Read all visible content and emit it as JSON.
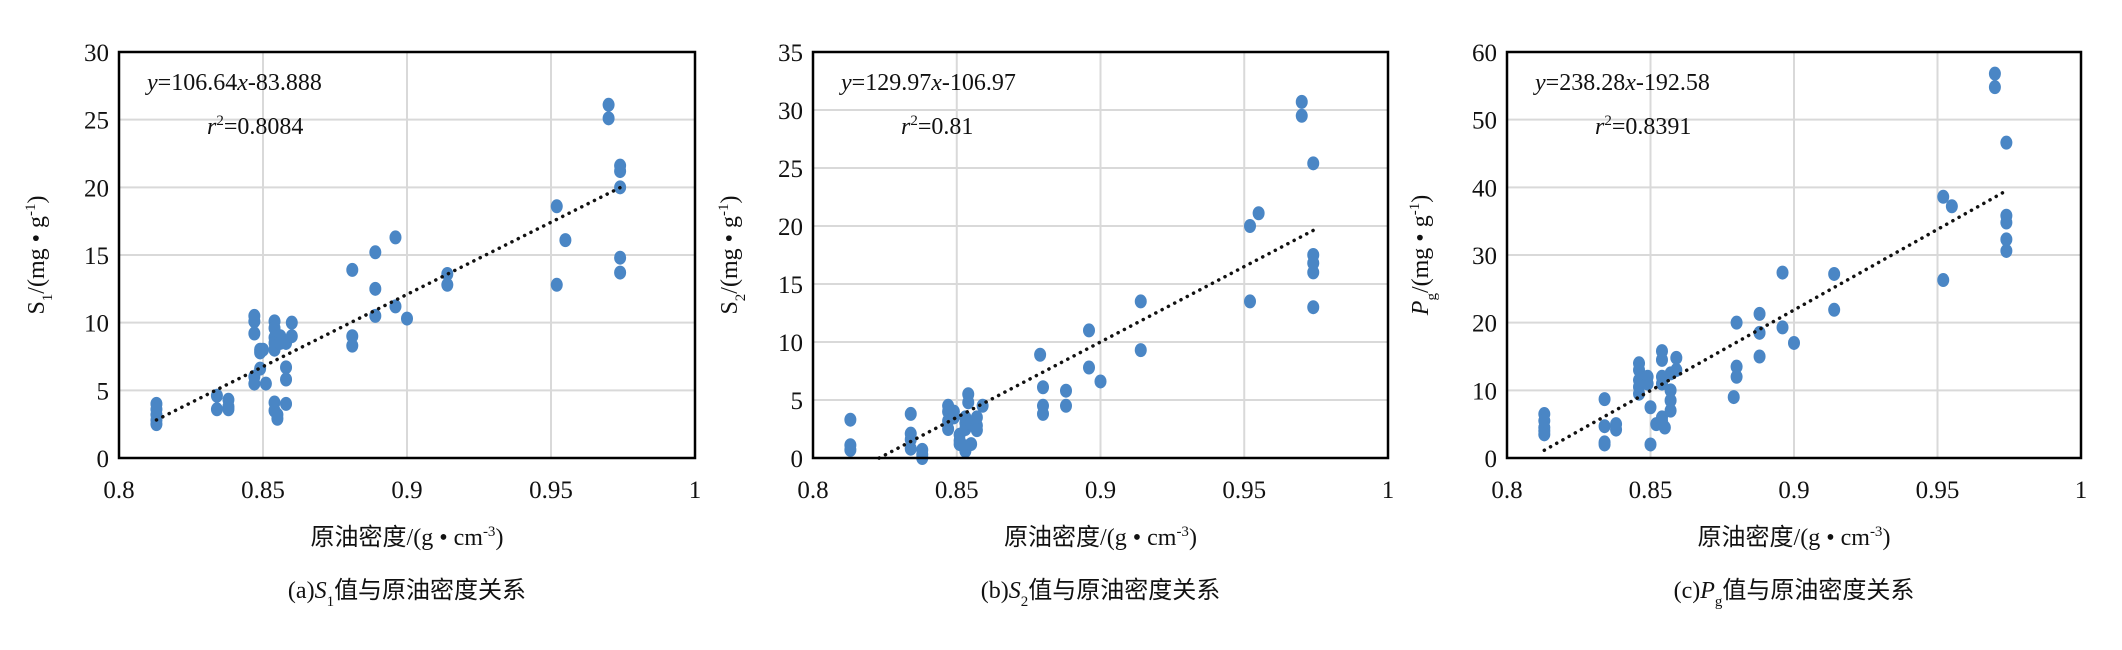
{
  "colors": {
    "point": "#4a86c5",
    "grid": "#d9d9d9",
    "trend": "#111111",
    "frame": "#000000"
  },
  "chart_data": [
    {
      "type": "scatter",
      "caption": {
        "prefix": "(a)",
        "var": "S",
        "sub": "1",
        "rest": "值与原油密度关系"
      },
      "xlabel": {
        "main": "原油密度/(g • cm",
        "sup": "-3",
        "close": ")"
      },
      "ylabel": {
        "var": "S",
        "sub": "1",
        "unit": "/(mg • g",
        "sup": "-1",
        "close": ")"
      },
      "xlim": [
        0.8,
        1
      ],
      "ylim": [
        0,
        30
      ],
      "xticks": [
        "0.8",
        "0.85",
        "0.9",
        "0.95",
        "1"
      ],
      "yticks": [
        "0",
        "5",
        "10",
        "15",
        "20",
        "25",
        "30"
      ],
      "grid": true,
      "equation": {
        "lhs": "y",
        "text": "=106.64",
        "x": "x",
        "tail": "-83.888"
      },
      "r2": {
        "r": "r",
        "sup": "2",
        "value": "=0.8084"
      },
      "trend": {
        "slope": 106.64,
        "intercept": -83.888,
        "x_range": [
          0.813,
          0.974
        ]
      },
      "points": [
        [
          0.813,
          4.0
        ],
        [
          0.813,
          3.6
        ],
        [
          0.813,
          3.2
        ],
        [
          0.813,
          2.8
        ],
        [
          0.813,
          2.5
        ],
        [
          0.834,
          4.6
        ],
        [
          0.834,
          3.6
        ],
        [
          0.838,
          4.3
        ],
        [
          0.838,
          3.8
        ],
        [
          0.838,
          3.6
        ],
        [
          0.847,
          10.5
        ],
        [
          0.847,
          10.1
        ],
        [
          0.847,
          9.2
        ],
        [
          0.847,
          6.0
        ],
        [
          0.847,
          5.5
        ],
        [
          0.849,
          8.0
        ],
        [
          0.849,
          7.8
        ],
        [
          0.849,
          6.6
        ],
        [
          0.851,
          5.5
        ],
        [
          0.85,
          8.0
        ],
        [
          0.854,
          10.1
        ],
        [
          0.854,
          9.6
        ],
        [
          0.854,
          8.9
        ],
        [
          0.854,
          8.5
        ],
        [
          0.854,
          8.0
        ],
        [
          0.854,
          4.1
        ],
        [
          0.854,
          3.5
        ],
        [
          0.855,
          2.9
        ],
        [
          0.856,
          9.0
        ],
        [
          0.856,
          8.5
        ],
        [
          0.855,
          3.2
        ],
        [
          0.858,
          8.5
        ],
        [
          0.858,
          6.7
        ],
        [
          0.858,
          5.8
        ],
        [
          0.858,
          4.0
        ],
        [
          0.86,
          10.0
        ],
        [
          0.86,
          9.0
        ],
        [
          0.881,
          13.9
        ],
        [
          0.881,
          9.0
        ],
        [
          0.881,
          8.3
        ],
        [
          0.889,
          15.2
        ],
        [
          0.889,
          12.5
        ],
        [
          0.889,
          10.5
        ],
        [
          0.896,
          16.3
        ],
        [
          0.896,
          11.2
        ],
        [
          0.9,
          10.3
        ],
        [
          0.914,
          13.6
        ],
        [
          0.914,
          12.8
        ],
        [
          0.952,
          18.6
        ],
        [
          0.952,
          12.8
        ],
        [
          0.955,
          16.1
        ],
        [
          0.97,
          26.1
        ],
        [
          0.97,
          25.1
        ],
        [
          0.974,
          21.6
        ],
        [
          0.974,
          21.2
        ],
        [
          0.974,
          20.0
        ],
        [
          0.974,
          14.8
        ],
        [
          0.974,
          13.7
        ]
      ]
    },
    {
      "type": "scatter",
      "caption": {
        "prefix": "(b)",
        "var": "S",
        "sub": "2",
        "rest": "值与原油密度关系"
      },
      "xlabel": {
        "main": "原油密度/(g • cm",
        "sup": "-3",
        "close": ")"
      },
      "ylabel": {
        "var": "S",
        "sub": "2",
        "unit": "/(mg • g",
        "sup": "-1",
        "close": ")"
      },
      "xlim": [
        0.8,
        1
      ],
      "ylim": [
        0,
        35
      ],
      "xticks": [
        "0.8",
        "0.85",
        "0.9",
        "0.95",
        "1"
      ],
      "yticks": [
        "0",
        "5",
        "10",
        "15",
        "20",
        "25",
        "30",
        "35"
      ],
      "grid": true,
      "equation": {
        "lhs": "y",
        "text": "=129.97",
        "x": "x",
        "tail": "-106.97"
      },
      "r2": {
        "r": "r",
        "sup": "2",
        "value": "=0.81"
      },
      "trend": {
        "slope": 129.97,
        "intercept": -106.97,
        "x_range": [
          0.823,
          0.974
        ]
      },
      "points": [
        [
          0.813,
          3.3
        ],
        [
          0.813,
          1.1
        ],
        [
          0.813,
          0.7
        ],
        [
          0.834,
          3.8
        ],
        [
          0.834,
          2.1
        ],
        [
          0.834,
          1.6
        ],
        [
          0.834,
          0.8
        ],
        [
          0.838,
          0.7
        ],
        [
          0.838,
          0.3
        ],
        [
          0.838,
          0.0
        ],
        [
          0.847,
          4.5
        ],
        [
          0.847,
          4.0
        ],
        [
          0.847,
          3.2
        ],
        [
          0.847,
          2.5
        ],
        [
          0.849,
          4.0
        ],
        [
          0.849,
          3.5
        ],
        [
          0.851,
          2.0
        ],
        [
          0.851,
          1.5
        ],
        [
          0.851,
          1.2
        ],
        [
          0.853,
          0.6
        ],
        [
          0.853,
          1.0
        ],
        [
          0.853,
          2.5
        ],
        [
          0.853,
          3.0
        ],
        [
          0.853,
          3.5
        ],
        [
          0.854,
          5.5
        ],
        [
          0.854,
          4.8
        ],
        [
          0.855,
          3.0
        ],
        [
          0.855,
          1.2
        ],
        [
          0.857,
          3.5
        ],
        [
          0.857,
          2.8
        ],
        [
          0.857,
          2.4
        ],
        [
          0.859,
          4.5
        ],
        [
          0.879,
          8.9
        ],
        [
          0.88,
          6.1
        ],
        [
          0.88,
          4.5
        ],
        [
          0.88,
          3.8
        ],
        [
          0.888,
          5.8
        ],
        [
          0.888,
          4.5
        ],
        [
          0.896,
          11.0
        ],
        [
          0.896,
          7.8
        ],
        [
          0.9,
          6.6
        ],
        [
          0.914,
          13.5
        ],
        [
          0.914,
          9.3
        ],
        [
          0.952,
          20.0
        ],
        [
          0.952,
          13.5
        ],
        [
          0.955,
          21.1
        ],
        [
          0.97,
          30.7
        ],
        [
          0.97,
          29.5
        ],
        [
          0.974,
          25.4
        ],
        [
          0.974,
          17.5
        ],
        [
          0.974,
          16.8
        ],
        [
          0.974,
          16.0
        ],
        [
          0.974,
          13.0
        ]
      ]
    },
    {
      "type": "scatter",
      "caption": {
        "prefix": "(c)",
        "var": "P",
        "sub": "g",
        "rest": "值与原油密度关系"
      },
      "xlabel": {
        "main": "原油密度/(g • cm",
        "sup": "-3",
        "close": ")"
      },
      "ylabel": {
        "var": "P",
        "sub": "g",
        "unit": "/(mg • g",
        "sup": "-1",
        "close": ")"
      },
      "xlim": [
        0.8,
        1
      ],
      "ylim": [
        0,
        60
      ],
      "xticks": [
        "0.8",
        "0.85",
        "0.9",
        "0.95",
        "1"
      ],
      "yticks": [
        "0",
        "10",
        "20",
        "30",
        "40",
        "50",
        "60"
      ],
      "grid": true,
      "equation": {
        "lhs": "y",
        "text": "=238.28",
        "x": "x",
        "tail": "-192.58"
      },
      "r2": {
        "r": "r",
        "sup": "2",
        "value": "=0.8391"
      },
      "trend": {
        "slope": 238.28,
        "intercept": -192.58,
        "x_range": [
          0.813,
          0.974
        ]
      },
      "points": [
        [
          0.813,
          6.5
        ],
        [
          0.813,
          5.5
        ],
        [
          0.813,
          4.5
        ],
        [
          0.813,
          4.0
        ],
        [
          0.813,
          3.5
        ],
        [
          0.834,
          8.7
        ],
        [
          0.834,
          4.7
        ],
        [
          0.834,
          2.3
        ],
        [
          0.834,
          2.0
        ],
        [
          0.838,
          5.0
        ],
        [
          0.838,
          4.2
        ],
        [
          0.846,
          14.0
        ],
        [
          0.846,
          13.0
        ],
        [
          0.846,
          11.5
        ],
        [
          0.846,
          10.5
        ],
        [
          0.846,
          9.5
        ],
        [
          0.849,
          12.0
        ],
        [
          0.849,
          11.0
        ],
        [
          0.85,
          7.5
        ],
        [
          0.85,
          2.0
        ],
        [
          0.852,
          5.0
        ],
        [
          0.854,
          15.8
        ],
        [
          0.854,
          14.5
        ],
        [
          0.854,
          12.0
        ],
        [
          0.854,
          11.0
        ],
        [
          0.854,
          6.0
        ],
        [
          0.854,
          5.5
        ],
        [
          0.855,
          4.5
        ],
        [
          0.857,
          12.5
        ],
        [
          0.857,
          10.0
        ],
        [
          0.857,
          8.5
        ],
        [
          0.857,
          7.0
        ],
        [
          0.859,
          14.8
        ],
        [
          0.859,
          13.0
        ],
        [
          0.879,
          9.0
        ],
        [
          0.88,
          20.0
        ],
        [
          0.88,
          13.5
        ],
        [
          0.88,
          12.0
        ],
        [
          0.888,
          21.3
        ],
        [
          0.888,
          18.5
        ],
        [
          0.888,
          15.0
        ],
        [
          0.896,
          27.4
        ],
        [
          0.896,
          19.3
        ],
        [
          0.9,
          17.0
        ],
        [
          0.914,
          27.2
        ],
        [
          0.914,
          21.9
        ],
        [
          0.952,
          38.6
        ],
        [
          0.952,
          26.3
        ],
        [
          0.955,
          37.2
        ],
        [
          0.97,
          56.8
        ],
        [
          0.97,
          54.8
        ],
        [
          0.974,
          46.6
        ],
        [
          0.974,
          35.8
        ],
        [
          0.974,
          34.8
        ],
        [
          0.974,
          32.3
        ],
        [
          0.974,
          30.6
        ]
      ]
    }
  ]
}
